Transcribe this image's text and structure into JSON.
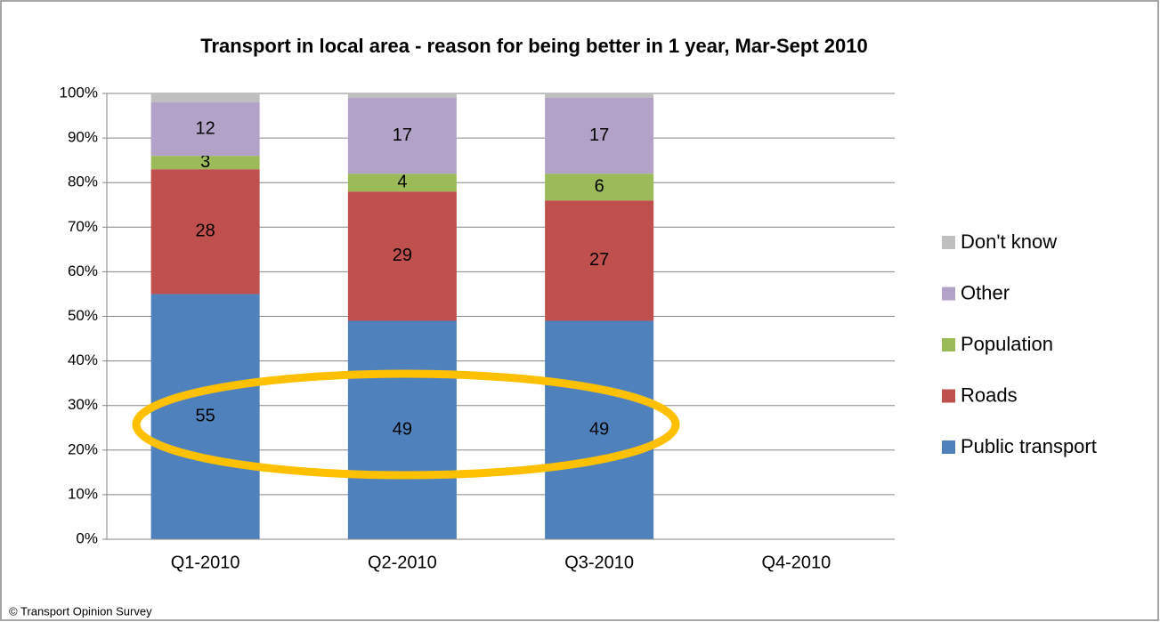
{
  "chart_data": {
    "type": "stacked_bar",
    "title": "Transport in local area - reason for being better in 1 year, Mar-Sept 2010",
    "source": "© Transport Opinion Survey",
    "categories": [
      "Q1-2010",
      "Q2-2010",
      "Q3-2010",
      "Q4-2010"
    ],
    "series": [
      {
        "name": "Public transport",
        "color": "#4f81bd",
        "labels": true,
        "values": [
          55,
          49,
          49,
          null
        ]
      },
      {
        "name": "Roads",
        "color": "#c0504d",
        "labels": true,
        "values": [
          28,
          29,
          27,
          null
        ]
      },
      {
        "name": "Population",
        "color": "#9bbb59",
        "labels": true,
        "values": [
          3,
          4,
          6,
          null
        ]
      },
      {
        "name": "Other",
        "color": "#b3a2c7",
        "labels": true,
        "values": [
          12,
          17,
          17,
          null
        ]
      },
      {
        "name": "Don't know",
        "color": "#bfbfbf",
        "labels": false,
        "values": [
          2,
          1,
          1,
          null
        ]
      }
    ],
    "ylim": [
      0,
      100
    ],
    "yticks": [
      {
        "value": 0,
        "label": "0%"
      },
      {
        "value": 10,
        "label": "10%"
      },
      {
        "value": 20,
        "label": "20%"
      },
      {
        "value": 30,
        "label": "30%"
      },
      {
        "value": 40,
        "label": "40%"
      },
      {
        "value": 50,
        "label": "50%"
      },
      {
        "value": 60,
        "label": "60%"
      },
      {
        "value": 70,
        "label": "70%"
      },
      {
        "value": 80,
        "label": "80%"
      },
      {
        "value": 90,
        "label": "90%"
      },
      {
        "value": 100,
        "label": "100%"
      }
    ],
    "grid": true,
    "legend": "right"
  }
}
